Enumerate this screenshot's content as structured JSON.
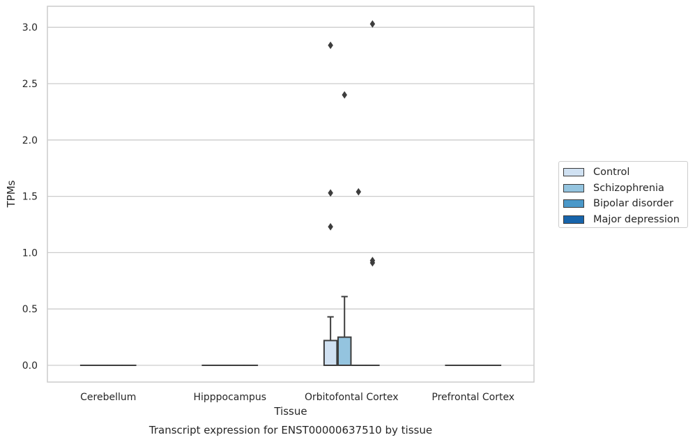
{
  "chart_data": {
    "type": "box",
    "xlabel": "Tissue",
    "ylabel": "TPMs",
    "caption": "Transcript expression for ENST00000637510 by tissue",
    "ylim": [
      -0.15,
      3.2
    ],
    "yticks": [
      "0.0",
      "0.5",
      "1.0",
      "1.5",
      "2.0",
      "2.5",
      "3.0"
    ],
    "grid": true,
    "legend_position": "right",
    "categories": [
      "Cerebellum",
      "Hipppocampus",
      "Orbitofontal Cortex",
      "Prefrontal Cortex"
    ],
    "series": [
      {
        "name": "Control",
        "color": "#d0e1f2"
      },
      {
        "name": "Schizophrenia",
        "color": "#94c4df"
      },
      {
        "name": "Bipolar disorder",
        "color": "#4a98c9"
      },
      {
        "name": "Major depression",
        "color": "#1764ab"
      }
    ],
    "boxes": [
      {
        "category": "Cerebellum",
        "series": "Control",
        "min": 0,
        "q1": 0,
        "median": 0,
        "q3": 0,
        "max": 0,
        "outliers": []
      },
      {
        "category": "Cerebellum",
        "series": "Schizophrenia",
        "min": 0,
        "q1": 0,
        "median": 0,
        "q3": 0,
        "max": 0,
        "outliers": []
      },
      {
        "category": "Cerebellum",
        "series": "Bipolar disorder",
        "min": 0,
        "q1": 0,
        "median": 0,
        "q3": 0,
        "max": 0,
        "outliers": []
      },
      {
        "category": "Cerebellum",
        "series": "Major depression",
        "min": 0,
        "q1": 0,
        "median": 0,
        "q3": 0,
        "max": 0,
        "outliers": []
      },
      {
        "category": "Hipppocampus",
        "series": "Control",
        "min": 0,
        "q1": 0,
        "median": 0,
        "q3": 0,
        "max": 0,
        "outliers": []
      },
      {
        "category": "Hipppocampus",
        "series": "Schizophrenia",
        "min": 0,
        "q1": 0,
        "median": 0,
        "q3": 0,
        "max": 0,
        "outliers": []
      },
      {
        "category": "Hipppocampus",
        "series": "Bipolar disorder",
        "min": 0,
        "q1": 0,
        "median": 0,
        "q3": 0,
        "max": 0,
        "outliers": []
      },
      {
        "category": "Hipppocampus",
        "series": "Major depression",
        "min": 0,
        "q1": 0,
        "median": 0,
        "q3": 0,
        "max": 0,
        "outliers": []
      },
      {
        "category": "Orbitofontal Cortex",
        "series": "Control",
        "min": 0,
        "q1": 0,
        "median": 0,
        "q3": 0.22,
        "max": 0.43,
        "outliers": [
          1.23,
          1.53,
          2.84
        ]
      },
      {
        "category": "Orbitofontal Cortex",
        "series": "Schizophrenia",
        "min": 0,
        "q1": 0,
        "median": 0,
        "q3": 0.25,
        "max": 0.61,
        "outliers": [
          2.4
        ]
      },
      {
        "category": "Orbitofontal Cortex",
        "series": "Bipolar disorder",
        "min": 0,
        "q1": 0,
        "median": 0,
        "q3": 0,
        "max": 0,
        "outliers": [
          1.54
        ]
      },
      {
        "category": "Orbitofontal Cortex",
        "series": "Major depression",
        "min": 0,
        "q1": 0,
        "median": 0,
        "q3": 0,
        "max": 0,
        "outliers": [
          0.91,
          0.93,
          3.03
        ]
      },
      {
        "category": "Prefrontal Cortex",
        "series": "Control",
        "min": 0,
        "q1": 0,
        "median": 0,
        "q3": 0,
        "max": 0,
        "outliers": []
      },
      {
        "category": "Prefrontal Cortex",
        "series": "Schizophrenia",
        "min": 0,
        "q1": 0,
        "median": 0,
        "q3": 0,
        "max": 0,
        "outliers": []
      },
      {
        "category": "Prefrontal Cortex",
        "series": "Bipolar disorder",
        "min": 0,
        "q1": 0,
        "median": 0,
        "q3": 0,
        "max": 0,
        "outliers": []
      },
      {
        "category": "Prefrontal Cortex",
        "series": "Major depression",
        "min": 0,
        "q1": 0,
        "median": 0,
        "q3": 0,
        "max": 0,
        "outliers": []
      }
    ]
  }
}
